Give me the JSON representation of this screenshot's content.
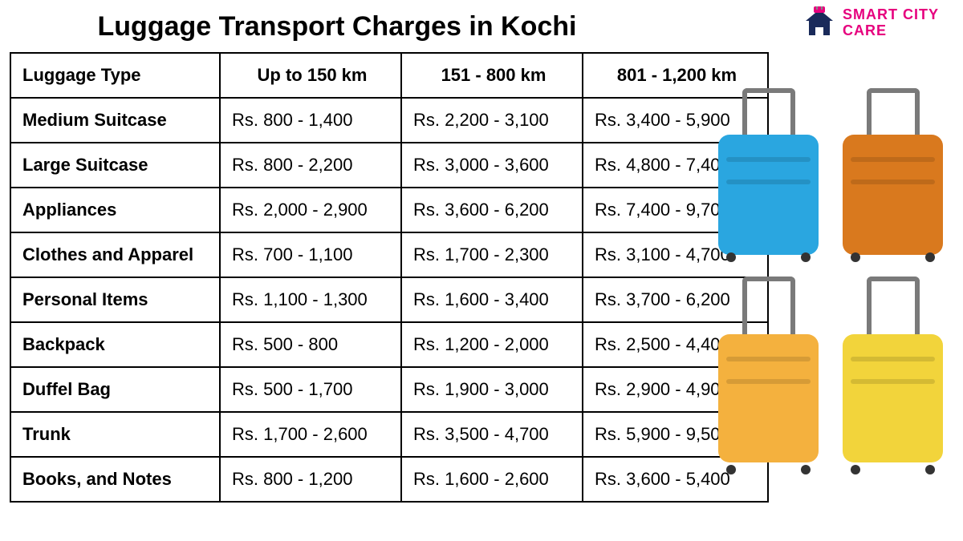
{
  "title": "Luggage Transport Charges in Kochi",
  "logo": {
    "line1": "SMART CITY",
    "line2": "CARE",
    "brand_color": "#e6007e",
    "house_color": "#1a2a5a"
  },
  "table": {
    "columns": [
      "Luggage Type",
      "Up to 150 km",
      "151 - 800 km",
      "801 - 1,200 km"
    ],
    "rows": [
      [
        "Medium Suitcase",
        "Rs. 800 - 1,400",
        "Rs. 2,200 - 3,100",
        "Rs. 3,400 - 5,900"
      ],
      [
        "Large Suitcase",
        "Rs. 800 - 2,200",
        "Rs. 3,000 - 3,600",
        "Rs. 4,800 - 7,400"
      ],
      [
        "Appliances",
        "Rs. 2,000 - 2,900",
        "Rs. 3,600 - 6,200",
        "Rs. 7,400 - 9,700"
      ],
      [
        "Clothes and Apparel",
        "Rs. 700 - 1,100",
        "Rs. 1,700 - 2,300",
        "Rs. 3,100 - 4,700"
      ],
      [
        "Personal Items",
        "Rs. 1,100 - 1,300",
        "Rs. 1,600 - 3,400",
        "Rs. 3,700 - 6,200"
      ],
      [
        "Backpack",
        "Rs. 500 - 800",
        "Rs. 1,200 - 2,000",
        "Rs. 2,500 - 4,400"
      ],
      [
        "Duffel Bag",
        "Rs. 500 - 1,700",
        "Rs. 1,900 - 3,000",
        "Rs. 2,900 - 4,900"
      ],
      [
        "Trunk",
        "Rs. 1,700 - 2,600",
        "Rs. 3,500 - 4,700",
        "Rs. 5,900 - 9,500"
      ],
      [
        "Books, and Notes",
        "Rs. 800 - 1,200",
        "Rs. 1,600 - 2,600",
        "Rs. 3,600 - 5,400"
      ]
    ],
    "border_color": "#000000",
    "header_fontsize": 22,
    "cell_fontsize": 22
  },
  "suitcases": [
    {
      "color": "#2aa6e0"
    },
    {
      "color": "#d9791e"
    },
    {
      "color": "#f4b13e"
    },
    {
      "color": "#f2d43b"
    }
  ],
  "background_color": "#ffffff"
}
